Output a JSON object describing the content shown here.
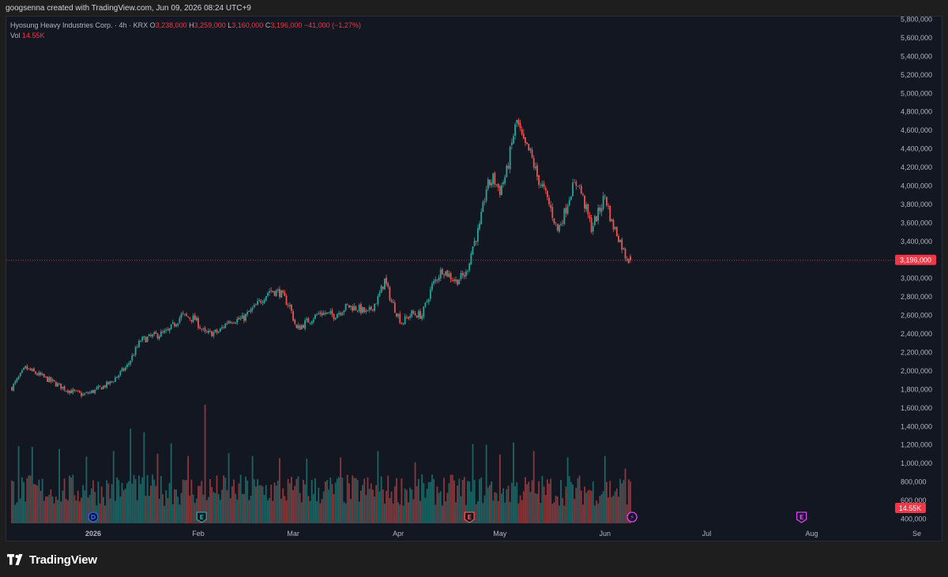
{
  "header": {
    "caption": "googsenna created with TradingView.com, Jun 09, 2026 08:24 UTC+9"
  },
  "legend": {
    "symbol": "Hyosung Heavy Industries Corp. · 4h · KRX",
    "open_label": "O",
    "open": "3,238,000",
    "high_label": "H",
    "high": "3,259,000",
    "low_label": "L",
    "low": "3,160,000",
    "close_label": "C",
    "close": "3,196,000",
    "change": "−41,000 (−1.27%)",
    "vol_label": "Vol",
    "vol": "14.55K"
  },
  "colors": {
    "up": "#26a69a",
    "down": "#ef5350",
    "background": "#131722",
    "last_price": "#f23645",
    "event_blue": "#2962ff",
    "event_green": "#26a69a",
    "event_red": "#ef5350",
    "event_purple": "#e040fb"
  },
  "brand": {
    "name": "TradingView"
  },
  "chart_data": {
    "type": "candlestick",
    "y_axis": {
      "min": 300000,
      "max": 5800000,
      "ticks": [
        400000,
        600000,
        800000,
        1000000,
        1200000,
        1400000,
        1600000,
        1800000,
        2000000,
        2200000,
        2400000,
        2600000,
        2800000,
        3000000,
        3200000,
        3400000,
        3600000,
        3800000,
        4000000,
        4200000,
        4400000,
        4600000,
        4800000,
        5000000,
        5200000,
        5400000,
        5600000,
        5800000
      ],
      "tick_labels": [
        "400,000",
        "600,000",
        "800,000",
        "1,000,000",
        "1,200,000",
        "1,400,000",
        "1,600,000",
        "1,800,000",
        "2,000,000",
        "2,200,000",
        "2,400,000",
        "2,600,000",
        "2,800,000",
        "3,000,000",
        "3,200,000",
        "3,400,000",
        "3,600,000",
        "3,800,000",
        "4,000,000",
        "4,200,000",
        "4,400,000",
        "4,600,000",
        "4,800,000",
        "5,000,000",
        "5,200,000",
        "5,400,000",
        "5,600,000",
        "5,800,000"
      ]
    },
    "x_axis": {
      "labels": [
        "2026",
        "Feb",
        "Mar",
        "Apr",
        "May",
        "Jun",
        "Jul",
        "Aug",
        "Se"
      ],
      "label_days": [
        0,
        31,
        59,
        90,
        120,
        151,
        181,
        212,
        243
      ]
    },
    "last_price": 3196000,
    "last_price_label": "3,196,000",
    "last_volume_label": "14.55K",
    "volume_scale_max": 1800000,
    "events": [
      {
        "glyph": "D",
        "day": 0,
        "color": "blue"
      },
      {
        "glyph": "E",
        "day": 32,
        "color": "green"
      },
      {
        "glyph": "E",
        "day": 111,
        "color": "red"
      },
      {
        "glyph": "⚡",
        "day": 159,
        "color": "purple"
      },
      {
        "glyph": "E",
        "day": 209,
        "color": "purple"
      }
    ],
    "price_path": [
      [
        -24,
        1820000
      ],
      [
        -20,
        2030000
      ],
      [
        -14,
        1920000
      ],
      [
        -8,
        1800000
      ],
      [
        -3,
        1740000
      ],
      [
        0,
        1780000
      ],
      [
        5,
        1870000
      ],
      [
        10,
        2050000
      ],
      [
        14,
        2330000
      ],
      [
        18,
        2380000
      ],
      [
        22,
        2420000
      ],
      [
        26,
        2600000
      ],
      [
        30,
        2560000
      ],
      [
        33,
        2400000
      ],
      [
        37,
        2420000
      ],
      [
        40,
        2550000
      ],
      [
        44,
        2560000
      ],
      [
        48,
        2700000
      ],
      [
        52,
        2870000
      ],
      [
        55,
        2850000
      ],
      [
        58,
        2700000
      ],
      [
        60,
        2450000
      ],
      [
        63,
        2530000
      ],
      [
        67,
        2630000
      ],
      [
        71,
        2600000
      ],
      [
        75,
        2700000
      ],
      [
        78,
        2680000
      ],
      [
        81,
        2620000
      ],
      [
        84,
        2780000
      ],
      [
        86,
        2980000
      ],
      [
        88,
        2750000
      ],
      [
        91,
        2520000
      ],
      [
        94,
        2620000
      ],
      [
        97,
        2600000
      ],
      [
        100,
        2920000
      ],
      [
        103,
        3100000
      ],
      [
        107,
        2970000
      ],
      [
        110,
        3050000
      ],
      [
        112,
        3350000
      ],
      [
        114,
        3550000
      ],
      [
        116,
        3980000
      ],
      [
        118,
        4080000
      ],
      [
        120,
        3950000
      ],
      [
        122,
        4150000
      ],
      [
        124,
        4550000
      ],
      [
        125,
        4700000
      ],
      [
        127,
        4450000
      ],
      [
        129,
        4350000
      ],
      [
        131,
        4100000
      ],
      [
        133,
        3950000
      ],
      [
        135,
        3750000
      ],
      [
        137,
        3520000
      ],
      [
        139,
        3700000
      ],
      [
        141,
        3950000
      ],
      [
        143,
        4050000
      ],
      [
        145,
        3800000
      ],
      [
        147,
        3550000
      ],
      [
        149,
        3700000
      ],
      [
        151,
        3900000
      ],
      [
        153,
        3600000
      ],
      [
        155,
        3450000
      ],
      [
        157,
        3250000
      ],
      [
        158.5,
        3196000
      ]
    ],
    "volume_spikes": [
      [
        -22,
        1100000
      ],
      [
        -18,
        1090000
      ],
      [
        -10,
        1060000
      ],
      [
        -2,
        950000
      ],
      [
        6,
        1030000
      ],
      [
        11,
        1350000
      ],
      [
        15,
        1300000
      ],
      [
        19,
        990000
      ],
      [
        23,
        1140000
      ],
      [
        28,
        960000
      ],
      [
        33,
        1690000
      ],
      [
        40,
        1000000
      ],
      [
        47,
        960000
      ],
      [
        55,
        930000
      ],
      [
        63,
        920000
      ],
      [
        73,
        940000
      ],
      [
        84,
        1030000
      ],
      [
        95,
        870000
      ],
      [
        112,
        1130000
      ],
      [
        116,
        1120000
      ],
      [
        120,
        980000
      ],
      [
        124,
        1150000
      ],
      [
        130,
        1030000
      ],
      [
        140,
        940000
      ],
      [
        151,
        960000
      ],
      [
        157,
        780000
      ]
    ]
  }
}
